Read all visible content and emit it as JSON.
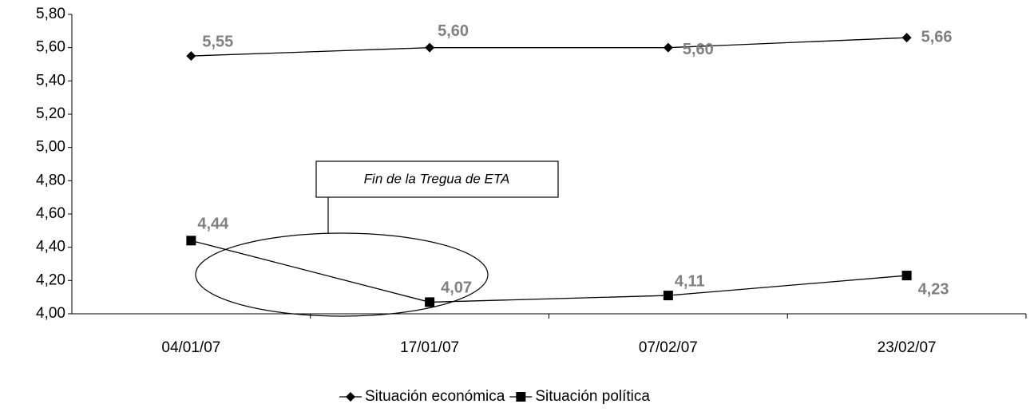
{
  "chart_data": {
    "type": "line",
    "categories": [
      "04/01/07",
      "17/01/07",
      "07/02/07",
      "23/02/07"
    ],
    "series": [
      {
        "name": "Situación económica",
        "color": "#000000",
        "marker": "diamond",
        "values": [
          5.55,
          5.6,
          5.6,
          5.66
        ],
        "value_labels": [
          "5,55",
          "5,60",
          "5,60",
          "5,66"
        ]
      },
      {
        "name": "Situación política",
        "color": "#000000",
        "marker": "square",
        "values": [
          4.44,
          4.07,
          4.11,
          4.23
        ],
        "value_labels": [
          "4,44",
          "4,07",
          "4,11",
          "4,23"
        ]
      }
    ],
    "ylim": [
      4.0,
      5.8
    ],
    "yticks": [
      {
        "value": 4.0,
        "label": "4,00"
      },
      {
        "value": 4.2,
        "label": "4,20"
      },
      {
        "value": 4.4,
        "label": "4,40"
      },
      {
        "value": 4.6,
        "label": "4,60"
      },
      {
        "value": 4.8,
        "label": "4,80"
      },
      {
        "value": 5.0,
        "label": "5,00"
      },
      {
        "value": 5.2,
        "label": "5,20"
      },
      {
        "value": 5.4,
        "label": "5,40"
      },
      {
        "value": 5.6,
        "label": "5,60"
      },
      {
        "value": 5.8,
        "label": "5,80"
      }
    ],
    "grid": false,
    "legend": "bottom",
    "annotation": "Fin de la Tregua de ETA"
  }
}
